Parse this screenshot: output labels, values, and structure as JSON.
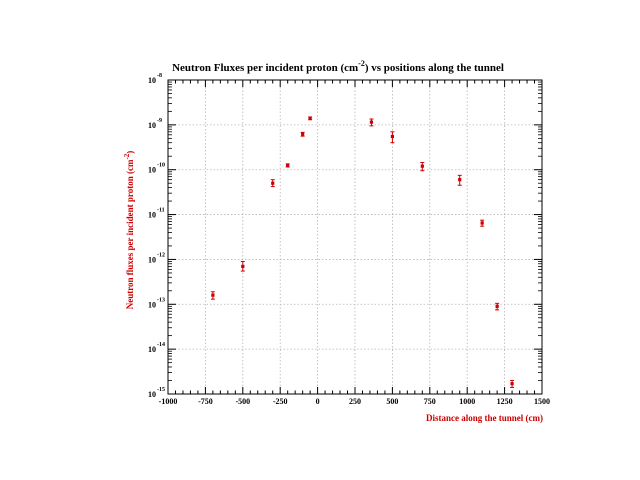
{
  "chart_data": {
    "type": "scatter",
    "title_parts": [
      "Neutron Fluxes per incident proton (cm",
      "-2",
      ") vs positions along the tunnel"
    ],
    "xlabel": "Distance along the tunnel (cm)",
    "ylabel_parts": [
      "Neutron fluxes per incident proton (cm",
      "-2",
      ")"
    ],
    "x_scale": "linear",
    "y_scale": "log",
    "xlim": [
      -1000,
      1500
    ],
    "ylim": [
      1e-15,
      1e-08
    ],
    "x_ticks": [
      -1000,
      -750,
      -500,
      -250,
      0,
      250,
      500,
      750,
      1000,
      1250,
      1500
    ],
    "x_tick_labels": [
      "-1000",
      "-750",
      "-500",
      "-250",
      "0",
      "250",
      "500",
      "750",
      "1000",
      "1250",
      "1500"
    ],
    "y_tick_exponents": [
      -15,
      -14,
      -13,
      -12,
      -11,
      -10,
      -9,
      -8
    ],
    "y_tick_labels": [
      {
        "base": "10",
        "exp": "-15"
      },
      {
        "base": "10",
        "exp": "-14"
      },
      {
        "base": "10",
        "exp": "-13"
      },
      {
        "base": "10",
        "exp": "-12"
      },
      {
        "base": "10",
        "exp": "-11"
      },
      {
        "base": "10",
        "exp": "-10"
      },
      {
        "base": "10",
        "exp": "-9"
      },
      {
        "base": "10",
        "exp": "-8"
      }
    ],
    "grid": true,
    "marker_color": "#cc0000",
    "label_color": "#cc0000",
    "points": [
      {
        "x": -700,
        "y": 1.6e-13,
        "y_low": 1.3e-13,
        "y_high": 1.9e-13
      },
      {
        "x": -500,
        "y": 7e-13,
        "y_low": 5.5e-13,
        "y_high": 9e-13
      },
      {
        "x": -300,
        "y": 5e-11,
        "y_low": 4.2e-11,
        "y_high": 6e-11
      },
      {
        "x": -200,
        "y": 1.25e-10,
        "y_low": 1.15e-10,
        "y_high": 1.35e-10
      },
      {
        "x": -100,
        "y": 6.2e-10,
        "y_low": 5.6e-10,
        "y_high": 6.8e-10
      },
      {
        "x": -50,
        "y": 1.4e-09,
        "y_low": 1.3e-09,
        "y_high": 1.5e-09
      },
      {
        "x": 360,
        "y": 1.15e-09,
        "y_low": 9.5e-10,
        "y_high": 1.35e-09
      },
      {
        "x": 500,
        "y": 5.5e-10,
        "y_low": 4e-10,
        "y_high": 7e-10
      },
      {
        "x": 700,
        "y": 1.2e-10,
        "y_low": 9.5e-11,
        "y_high": 1.45e-10
      },
      {
        "x": 950,
        "y": 6e-11,
        "y_low": 4.5e-11,
        "y_high": 7.5e-11
      },
      {
        "x": 1100,
        "y": 6.5e-12,
        "y_low": 5.5e-12,
        "y_high": 7.5e-12
      },
      {
        "x": 1200,
        "y": 9e-14,
        "y_low": 7.5e-14,
        "y_high": 1.05e-13
      },
      {
        "x": 1300,
        "y": 1.7e-15,
        "y_low": 1.4e-15,
        "y_high": 2e-15
      }
    ]
  }
}
